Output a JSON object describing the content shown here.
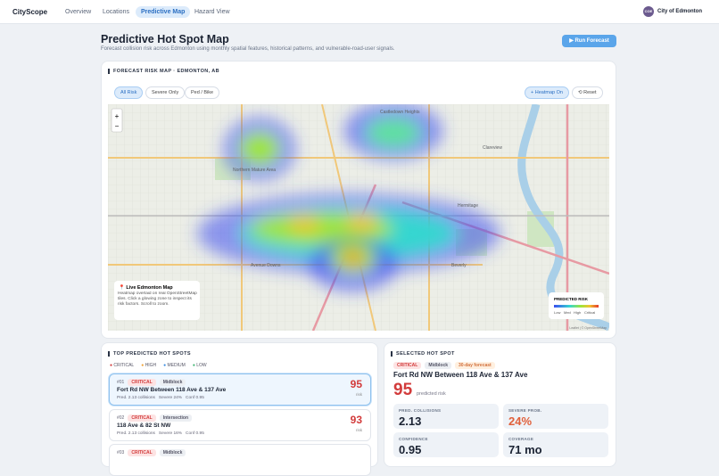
{
  "nav": {
    "brand": "CityScope",
    "tabs": [
      "Overview",
      "Locations",
      "Predictive Map",
      "Hazard View"
    ],
    "avatar": "COE",
    "org": "City of Edmonton"
  },
  "header": {
    "title": "Predictive Hot Spot Map",
    "subtitle": "Forecast collision risk across Edmonton using monthly spatial features, historical patterns, and vulnerable-road-user signals.",
    "button": "▶ Run Forecast"
  },
  "map_card": {
    "title": "FORECAST RISK MAP · EDMONTON, AB",
    "filters": [
      "All Risk",
      "Severe Only",
      "Ped / Bike"
    ],
    "heatmap_toggle": "+ Heatmap On",
    "reset": "⟲ Reset",
    "zoom_in": "+",
    "zoom_out": "−",
    "places": [
      "Castledown Heights",
      "Northern Mature Area",
      "Clareview",
      "Hermitage",
      "Beverly",
      "Avenue Downs"
    ],
    "info": {
      "title": "📍 Live Edmonton Map",
      "text": "Heatmap overlaid on real OpenStreetMap tiles. Click a glowing zone to inspect its risk factors. Scroll to zoom."
    },
    "legend": {
      "title": "PREDICTED RISK",
      "labels": [
        "Low",
        "Med",
        "High",
        "Critical"
      ]
    },
    "attribution": "Leaflet | © OpenStreetMap"
  },
  "hotspots": {
    "title": "TOP PREDICTED HOT SPOTS",
    "legend": [
      "CRITICAL",
      "HIGH",
      "MEDIUM",
      "LOW"
    ],
    "items": [
      {
        "rank": "#01",
        "level": "CRITICAL",
        "kind": "Midblock",
        "name": "Fort Rd NW Between 118 Ave & 137 Ave",
        "stats": "Pred. 2.13 collisions   Severe 24%   Conf 0.95",
        "score": 95,
        "unit": "risk"
      },
      {
        "rank": "#02",
        "level": "CRITICAL",
        "kind": "Intersection",
        "name": "118 Ave & 82 St NW",
        "stats": "Pred. 2.13 collisions   Severe 16%   Conf 0.95",
        "score": 93,
        "unit": "risk"
      },
      {
        "rank": "#03",
        "level": "CRITICAL",
        "kind": "Midblock"
      }
    ]
  },
  "selected": {
    "title": "SELECTED HOT SPOT",
    "tags": [
      "CRITICAL",
      "Midblock",
      "30-day forecast"
    ],
    "name": "Fort Rd NW Between 118 Ave & 137 Ave",
    "score": 95,
    "score_label": "predicted risk",
    "stats": [
      {
        "label": "PRED. COLLISIONS",
        "value": "2.13"
      },
      {
        "label": "SEVERE PROB.",
        "value": "24%"
      },
      {
        "label": "CONFIDENCE",
        "value": "0.95"
      },
      {
        "label": "COVERAGE",
        "value": "71 mo"
      }
    ]
  }
}
